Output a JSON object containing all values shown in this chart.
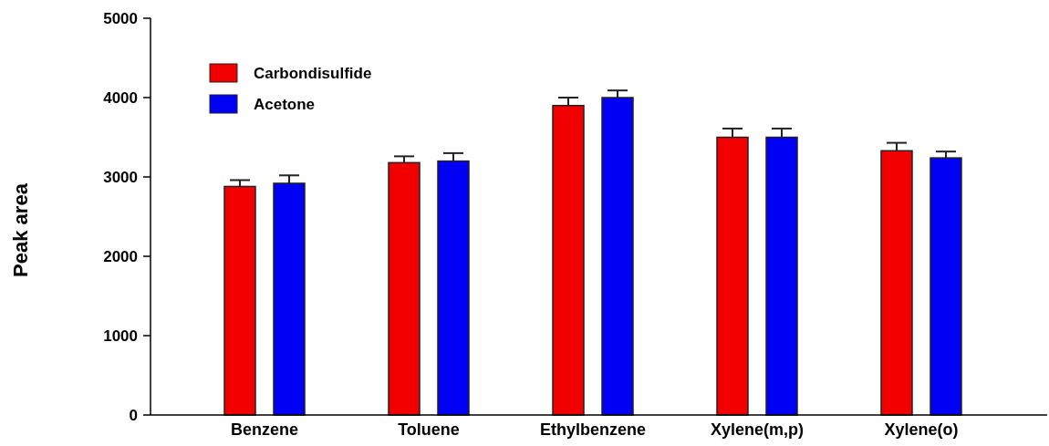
{
  "chart_data": {
    "type": "bar",
    "ylabel": "Peak area",
    "categories": [
      "Benzene",
      "Toluene",
      "Ethylbenzene",
      "Xylene(m,p)",
      "Xylene(o)"
    ],
    "series": [
      {
        "name": "Carbondisulfide",
        "color": "#f20000",
        "values": [
          2880,
          3180,
          3900,
          3500,
          3330
        ],
        "errors": [
          80,
          80,
          100,
          110,
          100
        ]
      },
      {
        "name": "Acetone",
        "color": "#0000f5",
        "values": [
          2920,
          3200,
          4000,
          3500,
          3240
        ],
        "errors": [
          100,
          100,
          90,
          110,
          80
        ]
      }
    ],
    "ylim": [
      0,
      5000
    ],
    "yticks": [
      0,
      1000,
      2000,
      3000,
      4000,
      5000
    ],
    "grid": false,
    "legend": "top left"
  }
}
